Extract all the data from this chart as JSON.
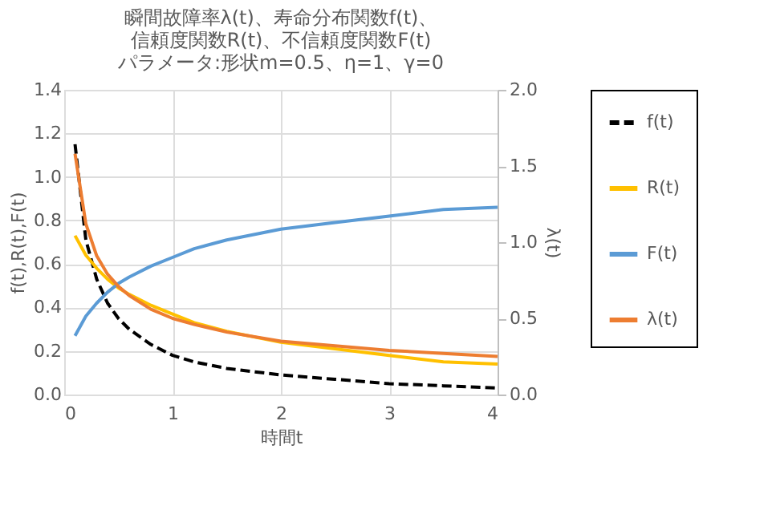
{
  "chart_data": {
    "type": "line",
    "title": [
      "瞬間故障率λ(t)、寿命分布関数f(t)、",
      "信頼度関数R(t)、不信頼度関数F(t)",
      "パラメータ:形状m=0.5、η=1、γ=0"
    ],
    "xlabel": "時間t",
    "ylabel": "f(t),R(t),F(t)",
    "y2label": "λ(t)",
    "x": [
      0.1,
      0.2,
      0.3,
      0.4,
      0.5,
      0.6,
      0.8,
      1.0,
      1.2,
      1.5,
      2.0,
      2.5,
      3.0,
      3.5,
      4.0
    ],
    "series": [
      {
        "name": "f(t)",
        "color": "#000000",
        "line_style": "dashed",
        "values": [
          1.15,
          0.71,
          0.53,
          0.42,
          0.35,
          0.3,
          0.23,
          0.18,
          0.15,
          0.12,
          0.09,
          0.07,
          0.05,
          0.04,
          0.03
        ]
      },
      {
        "name": "R(t)",
        "color": "#ffc000",
        "values": [
          0.73,
          0.64,
          0.58,
          0.53,
          0.49,
          0.46,
          0.41,
          0.37,
          0.33,
          0.29,
          0.24,
          0.21,
          0.18,
          0.15,
          0.14
        ]
      },
      {
        "name": "F(t)",
        "color": "#5b9bd5",
        "values": [
          0.27,
          0.36,
          0.42,
          0.47,
          0.51,
          0.54,
          0.59,
          0.63,
          0.67,
          0.71,
          0.76,
          0.79,
          0.82,
          0.85,
          0.86
        ]
      },
      {
        "name": "λ(t)",
        "color": "#ed7d31",
        "axis": "y2",
        "values": [
          1.58,
          1.12,
          0.91,
          0.79,
          0.71,
          0.65,
          0.56,
          0.5,
          0.46,
          0.41,
          0.35,
          0.32,
          0.29,
          0.27,
          0.25
        ]
      }
    ],
    "xlim": [
      0,
      4
    ],
    "xticks": [
      0,
      1,
      2,
      3,
      4
    ],
    "ylim": [
      0,
      1.4
    ],
    "yticks": [
      {
        "value": 0,
        "label": "0.0"
      },
      0.2,
      0.4,
      0.6,
      0.8,
      {
        "value": 1,
        "label": "1.0"
      },
      1.2,
      1.4
    ],
    "y2lim": [
      0,
      2
    ],
    "y2ticks": [
      {
        "value": 0,
        "label": "0.0"
      },
      0.5,
      {
        "value": 1,
        "label": "1.0"
      },
      1.5,
      {
        "value": 2,
        "label": "2.0"
      }
    ],
    "grid": true,
    "legend": "right",
    "line_style": "solid"
  }
}
